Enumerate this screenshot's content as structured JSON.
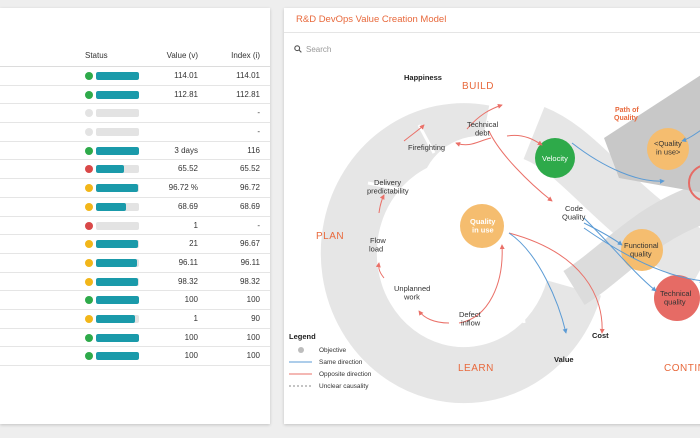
{
  "table": {
    "headers": {
      "status": "Status",
      "value": "Value (v)",
      "index": "Index (i)"
    },
    "rows": [
      {
        "status_color": "#2eaa4a",
        "fill": 1.0,
        "value": "114.01",
        "index": "114.01"
      },
      {
        "status_color": "#2eaa4a",
        "fill": 1.0,
        "value": "112.81",
        "index": "112.81"
      },
      {
        "status_color": "#e3e3e3",
        "fill": 0.0,
        "value": "",
        "index": "-"
      },
      {
        "status_color": "#e3e3e3",
        "fill": 0.0,
        "value": "",
        "index": "-"
      },
      {
        "status_color": "#2eaa4a",
        "fill": 1.0,
        "value": "3 days",
        "index": "116"
      },
      {
        "status_color": "#d94848",
        "fill": 0.66,
        "value": "65.52",
        "index": "65.52"
      },
      {
        "status_color": "#f2b619",
        "fill": 0.97,
        "value": "96.72 %",
        "index": "96.72"
      },
      {
        "status_color": "#f2b619",
        "fill": 0.69,
        "value": "68.69",
        "index": "68.69"
      },
      {
        "status_color": "#d94848",
        "fill": 0.0,
        "value": "1",
        "index": "-"
      },
      {
        "status_color": "#f2b619",
        "fill": 0.97,
        "value": "21",
        "index": "96.67"
      },
      {
        "status_color": "#f2b619",
        "fill": 0.96,
        "value": "96.11",
        "index": "96.11"
      },
      {
        "status_color": "#f2b619",
        "fill": 0.98,
        "value": "98.32",
        "index": "98.32"
      },
      {
        "status_color": "#2eaa4a",
        "fill": 1.0,
        "value": "100",
        "index": "100"
      },
      {
        "status_color": "#f2b619",
        "fill": 0.9,
        "value": "1",
        "index": "90"
      },
      {
        "status_color": "#2eaa4a",
        "fill": 1.0,
        "value": "100",
        "index": "100"
      },
      {
        "status_color": "#2eaa4a",
        "fill": 1.0,
        "value": "100",
        "index": "100"
      }
    ]
  },
  "model_panel": {
    "title": "R&D DevOps Value Creation Model",
    "search_placeholder": "Search",
    "phases": {
      "build": "BUILD",
      "plan": "PLAN",
      "learn": "LEARN",
      "continue": "CONTIN"
    },
    "path_of_quality": [
      "Path of",
      "Quality"
    ],
    "nodes": {
      "happiness": "Happiness",
      "technical_debt": [
        "Technical",
        "debt"
      ],
      "firefighting": "Firefighting",
      "velocity": "Velocity",
      "delivery_predictability": [
        "Delivery",
        "predictability"
      ],
      "code_quality": [
        "Code",
        "Quality"
      ],
      "quality_in_use": [
        "Quality",
        "in use"
      ],
      "flow_load": [
        "Flow",
        "load"
      ],
      "unplanned_work": [
        "Unplanned",
        "work"
      ],
      "defect_inflow": [
        "Defect",
        "inflow"
      ],
      "cost": "Cost",
      "value": "Value",
      "quality_in_use_right": [
        "<Quality",
        "in use>"
      ],
      "functional_quality": [
        "Functional",
        "quality"
      ],
      "technical_quality": [
        "Technical",
        "quality"
      ]
    },
    "legend": {
      "title": "Legend",
      "objective": "Objective",
      "same_direction": "Same direction",
      "opposite_direction": "Opposite direction",
      "unclear_causality": "Unclear causality"
    },
    "colors": {
      "accent": "#e8693c",
      "teal": "#1a9aaa",
      "green_node": "#2eaa4a",
      "orange_node": "#f5bd6f",
      "red_node": "#e66b65",
      "same_direction_line": "#5b9bd5",
      "opposite_direction_line": "#ea7068"
    }
  }
}
